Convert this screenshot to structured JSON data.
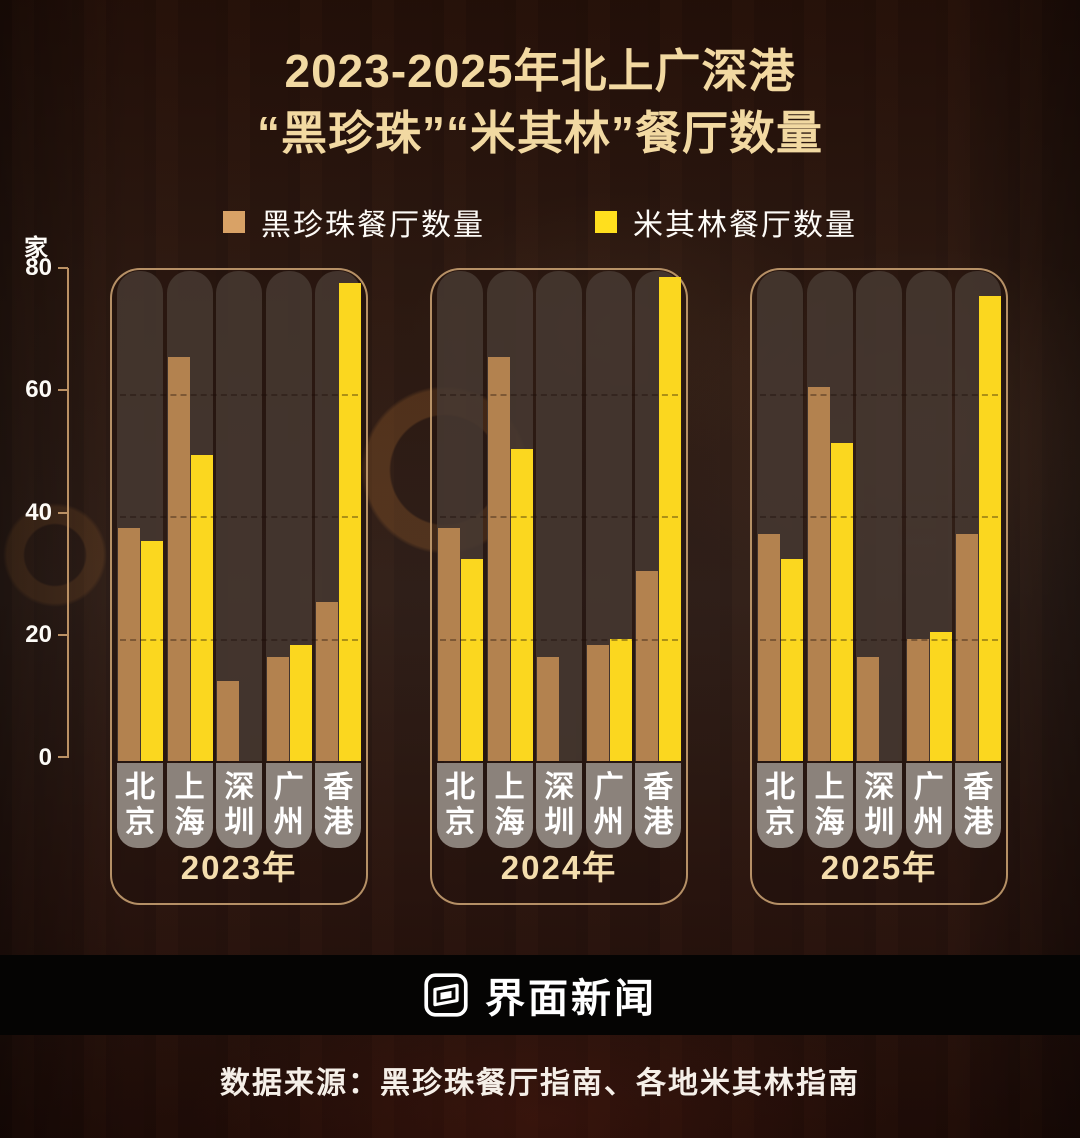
{
  "title": {
    "line1": "2023-2025年北上广深港",
    "line2": "“黑珍珠”“米其林”餐厅数量"
  },
  "legend": [
    {
      "label": "黑珍珠餐厅数量",
      "color": "#d9a266"
    },
    {
      "label": "米其林餐厅数量",
      "color": "#ffdf1e"
    }
  ],
  "axis": {
    "unit": "家",
    "ticks": [
      "80",
      "60",
      "40",
      "20",
      "0"
    ]
  },
  "chart_data": {
    "type": "bar",
    "title": "2023-2025年北上广深港“黑珍珠”“米其林”餐厅数量",
    "xlabel": "",
    "ylabel": "家",
    "ylim": [
      0,
      80
    ],
    "yticks": [
      0,
      20,
      40,
      60,
      80
    ],
    "grid": "dashed-horizontal",
    "legend_position": "top",
    "group_labels": [
      "2023年",
      "2024年",
      "2025年"
    ],
    "categories": [
      "北京",
      "上海",
      "深圳",
      "广州",
      "香港"
    ],
    "series": [
      {
        "name": "黑珍珠餐厅数量",
        "color": "#b3824f",
        "values": [
          [
            38,
            66,
            13,
            17,
            26
          ],
          [
            38,
            66,
            17,
            19,
            31
          ],
          [
            37,
            61,
            17,
            20,
            37
          ]
        ]
      },
      {
        "name": "米其林餐厅数量",
        "color": "#fbd71f",
        "values": [
          [
            36,
            50,
            null,
            19,
            78
          ],
          [
            33,
            51,
            null,
            20,
            79
          ],
          [
            33,
            52,
            null,
            21,
            76
          ]
        ]
      }
    ]
  },
  "footer": {
    "brand": "界面新闻",
    "source": "数据来源：黑珍珠餐厅指南、各地米其林指南"
  }
}
